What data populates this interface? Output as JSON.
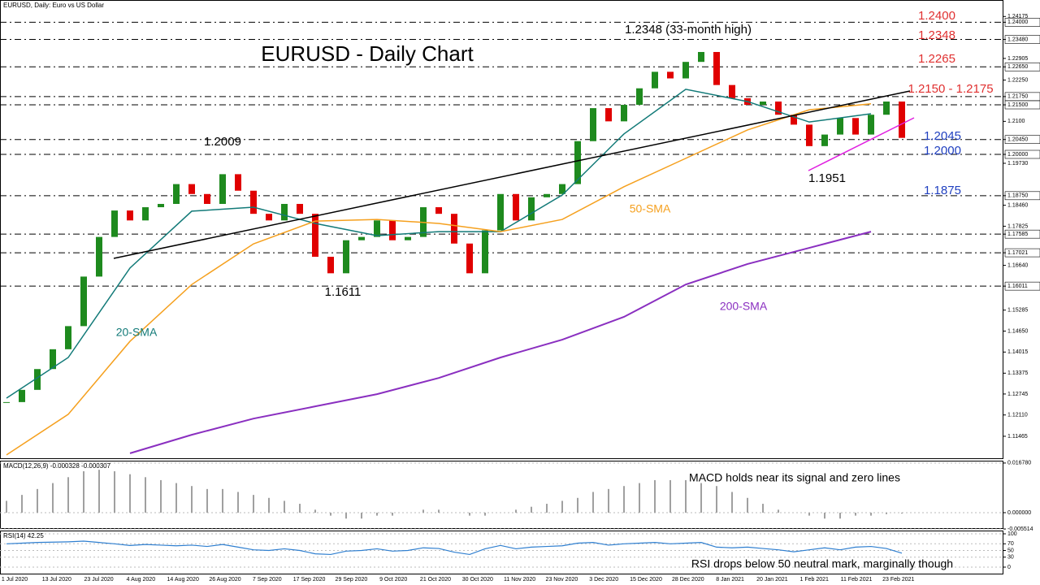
{
  "chart_data": [
    {
      "type": "candlestick",
      "title": "EURUSD - Daily Chart",
      "subtitle": "EURUSD, Daily:  Euro vs US Dollar",
      "up_color": "#1e8a1e",
      "down_color": "#e00000",
      "values": [
        1.125,
        1.1287,
        1.135,
        1.141,
        1.148,
        1.163,
        1.175,
        1.183,
        1.18,
        1.184,
        1.185,
        1.191,
        1.188,
        1.185,
        1.194,
        1.189,
        1.182,
        1.18,
        1.185,
        1.182,
        1.169,
        1.164,
        1.174,
        1.175,
        1.18,
        1.174,
        1.175,
        1.184,
        1.182,
        1.173,
        1.164,
        1.177,
        1.188,
        1.18,
        1.187,
        1.188,
        1.191,
        1.204,
        1.214,
        1.21,
        1.215,
        1.22,
        1.225,
        1.223,
        1.228,
        1.231,
        1.221,
        1.217,
        1.215,
        1.216,
        1.212,
        1.209,
        1.2025,
        1.206,
        1.211,
        1.206,
        1.212,
        1.216,
        1.205
      ],
      "series": [
        {
          "name": "20-SMA",
          "color": "#127a78",
          "values": [
            1.1262,
            1.1385,
            1.1656,
            1.1828,
            1.184,
            1.1791,
            1.1754,
            1.1766,
            1.1766,
            1.1877,
            1.2062,
            1.2197,
            1.216,
            1.2098,
            1.2123
          ]
        },
        {
          "name": "50-SMA",
          "color": "#f5a01e",
          "values": [
            1.109,
            1.1213,
            1.1434,
            1.1606,
            1.1729,
            1.1798,
            1.1803,
            1.1791,
            1.1766,
            1.1803,
            1.1902,
            1.1988,
            1.2074,
            1.2135,
            1.2153
          ]
        },
        {
          "name": "200-SMA",
          "color": "#8a2fc0",
          "values": [
            null,
            null,
            1.1095,
            1.1151,
            1.12,
            1.1237,
            1.1274,
            1.1323,
            1.1385,
            1.1439,
            1.1508,
            1.1606,
            1.1668,
            1.1717,
            1.1766
          ]
        }
      ],
      "ylim": [
        1.10775,
        1.24674
      ],
      "yticks": [
        1.24175,
        {
          "value": 1.24,
          "label": "1.24000"
        },
        {
          "value": 1.2348,
          "label": "1.23480"
        },
        1.22905,
        {
          "value": 1.2265,
          "label": "1.22650"
        },
        {
          "value": 1.2225,
          "label": "1.22250"
        },
        {
          "value": 1.2175,
          "label": "1.21750"
        },
        {
          "value": 1.215,
          "label": "1.21500"
        },
        {
          "value": 1.21,
          "label": "1.2100"
        },
        {
          "value": 1.2045,
          "label": "1.20450"
        },
        {
          "value": 1.2,
          "label": "1.20000"
        },
        {
          "value": 1.1973,
          "label": "1.19730"
        },
        {
          "value": 1.1875,
          "label": "1.18750"
        },
        {
          "value": 1.1846,
          "label": "1.18460"
        },
        1.17825,
        1.17585,
        1.17021,
        {
          "value": 1.1664,
          "label": "1.16640"
        },
        1.16011,
        1.15285,
        {
          "value": 1.1465,
          "label": "1.14650"
        },
        1.14015,
        1.13375,
        1.12745,
        {
          "value": 1.1211,
          "label": "1.12110"
        },
        1.11465
      ],
      "levels": [
        1.24,
        1.2348,
        1.2265,
        1.2175,
        1.215,
        1.2045,
        1.2,
        1.1875,
        1.17585,
        1.17021,
        1.16011
      ],
      "x_labels": [
        "1 Jul 2020",
        "13 Jul 2020",
        "23 Jul 2020",
        "4 Aug 2020",
        "14 Aug 2020",
        "26 Aug 2020",
        "7 Sep 2020",
        "17 Sep 2020",
        "29 Sep 2020",
        "9 Oct 2020",
        "21 Oct 2020",
        "30 Oct 2020",
        "11 Nov 2020",
        "23 Nov 2020",
        "3 Dec 2020",
        "15 Dec 2020",
        "28 Dec 2020",
        "8 Jan 2021",
        "20 Jan 2021",
        "1 Feb 2021",
        "11 Feb 2021",
        "23 Feb 2021"
      ],
      "annotations": {
        "high": "1.2348 (33-month high)",
        "peak_aug": "1.2009",
        "low_sep": "1.1611",
        "low_feb": "1.1951",
        "r1": "1.2400",
        "r2": "1.2348",
        "r3": "1.2265",
        "r4": "1.2150 - 1.2175",
        "s1": "1.2045",
        "s2": "1.2000",
        "s3": "1.1875"
      }
    },
    {
      "type": "bar",
      "title": "MACD(12,26,9) -0.000328 -0.000307",
      "note": "MACD holds near its signal and zero lines",
      "color": "#a0a0a0",
      "values": [
        0.004,
        0.006,
        0.008,
        0.01,
        0.012,
        0.014,
        0.0145,
        0.014,
        0.013,
        0.012,
        0.011,
        0.01,
        0.009,
        0.008,
        0.008,
        0.007,
        0.006,
        0.005,
        0.004,
        0.003,
        0.001,
        -0.001,
        -0.002,
        -0.002,
        -0.001,
        -0.001,
        0,
        0.001,
        0.001,
        0,
        -0.001,
        -0.001,
        0,
        0.001,
        0.002,
        0.003,
        0.004,
        0.005,
        0.007,
        0.008,
        0.009,
        0.01,
        0.011,
        0.011,
        0.011,
        0.01,
        0.009,
        0.007,
        0.005,
        0.003,
        0.001,
        0,
        -0.001,
        -0.002,
        -0.002,
        -0.001,
        -0.001,
        -0.0005,
        -0.0003
      ],
      "ylim": [
        -0.0055,
        0.0173
      ],
      "yticks": [
        {
          "value": 0.01678,
          "label": "0.016780"
        },
        {
          "value": 0,
          "label": "0.000000"
        },
        {
          "value": -0.005514,
          "label": "-0.005514"
        }
      ]
    },
    {
      "type": "line",
      "title": "RSI(14) 42.25",
      "note": "RSI drops below 50 neutral mark, marginally though",
      "color": "#2f7fd0",
      "values": [
        70,
        72,
        74,
        75,
        76,
        78,
        74,
        70,
        65,
        68,
        66,
        64,
        66,
        62,
        68,
        60,
        52,
        50,
        55,
        50,
        40,
        38,
        48,
        50,
        55,
        48,
        50,
        58,
        56,
        45,
        38,
        55,
        65,
        55,
        60,
        62,
        64,
        72,
        74,
        66,
        70,
        72,
        74,
        70,
        72,
        74,
        60,
        58,
        60,
        56,
        52,
        46,
        52,
        58,
        52,
        60,
        62,
        56,
        42
      ],
      "ylim": [
        0,
        100
      ],
      "yticks": [
        100,
        70,
        50,
        30,
        0
      ]
    }
  ]
}
